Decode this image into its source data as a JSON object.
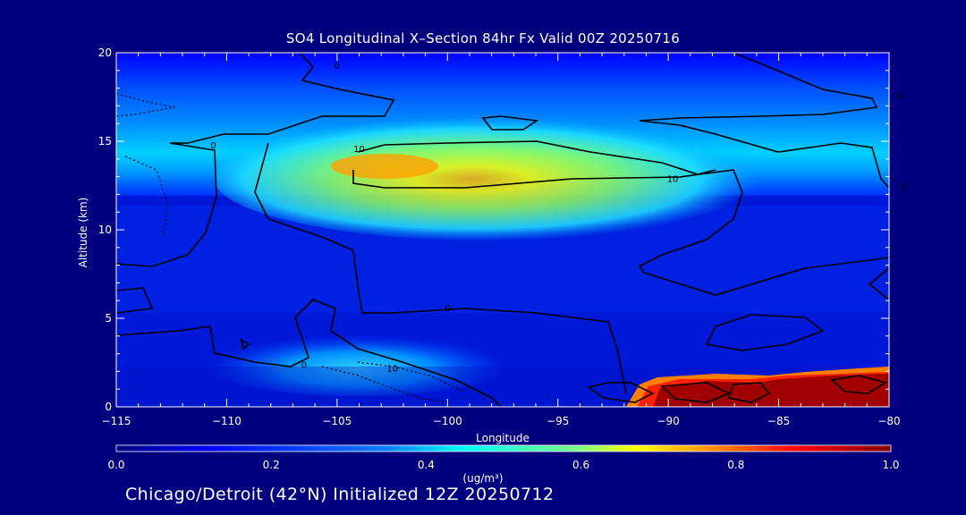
{
  "chart_data": {
    "type": "heatmap",
    "title": "SO4 Longitudinal X–Section 84hr  Fx Valid 00Z 20250716",
    "xlabel": "Longitude",
    "ylabel": "Altitude (km)",
    "xlim": [
      -115,
      -80
    ],
    "ylim": [
      0,
      20
    ],
    "x_ticks": [
      -115,
      -110,
      -105,
      -100,
      -95,
      -90,
      -85,
      -80
    ],
    "y_ticks": [
      0,
      5,
      10,
      15,
      20
    ],
    "colorbar": {
      "ticks": [
        0.0,
        0.2,
        0.4,
        0.6,
        0.8,
        1.0
      ],
      "tick_labels": [
        "0.0",
        "0.2",
        "0.4",
        "0.6",
        "0.8",
        "1.0"
      ],
      "units": "(ug/m³)",
      "colors": [
        "#00007f",
        "#0000ff",
        "#0080ff",
        "#00ffff",
        "#80ff80",
        "#ffff00",
        "#ff8000",
        "#ff0000",
        "#800000"
      ]
    },
    "contour_labels": [
      {
        "text": "0",
        "lon": -110.6,
        "alt": 14.8
      },
      {
        "text": "0",
        "lon": -79.5,
        "alt": 17.6
      },
      {
        "text": "10",
        "lon": -104.0,
        "alt": 14.6
      },
      {
        "text": "10",
        "lon": -89.8,
        "alt": 12.9
      },
      {
        "text": "0",
        "lon": -105.0,
        "alt": 19.3
      },
      {
        "text": "0",
        "lon": -100.0,
        "alt": 5.6
      },
      {
        "text": "0",
        "lon": -106.5,
        "alt": 2.4
      },
      {
        "text": "10",
        "lon": -102.5,
        "alt": 2.2
      },
      {
        "text": "0",
        "lon": -79.3,
        "alt": 12.5
      }
    ],
    "high_regions": [
      {
        "name": "upper plume",
        "lon": [
          -106,
          -93
        ],
        "alt": [
          12.5,
          15
        ],
        "peak": 0.7
      },
      {
        "name": "surface east",
        "lon": [
          -91,
          -80
        ],
        "alt": [
          0,
          1.6
        ],
        "peak": 1.0
      },
      {
        "name": "surface west",
        "lon": [
          -110,
          -98
        ],
        "alt": [
          0.3,
          2.5
        ],
        "peak": 0.45
      }
    ]
  },
  "footer": "Chicago/Detroit (42°N) Initialized 12Z 20250712"
}
